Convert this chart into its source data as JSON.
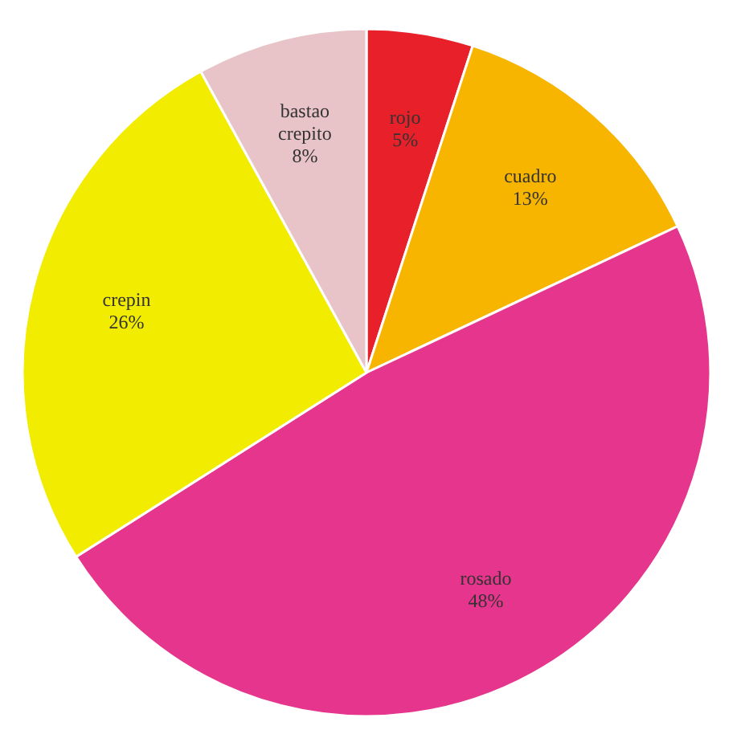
{
  "chart_data": {
    "type": "pie",
    "categories": [
      "rojo",
      "cuadro",
      "rosado",
      "crepin",
      "bastao crepito"
    ],
    "values": [
      5,
      13,
      48,
      26,
      8
    ],
    "colors": [
      "#e8202a",
      "#f7b500",
      "#e6358c",
      "#f2ec00",
      "#e8c4c8"
    ],
    "value_labels": [
      "5%",
      "13%",
      "48%",
      "26%",
      "8%"
    ]
  }
}
